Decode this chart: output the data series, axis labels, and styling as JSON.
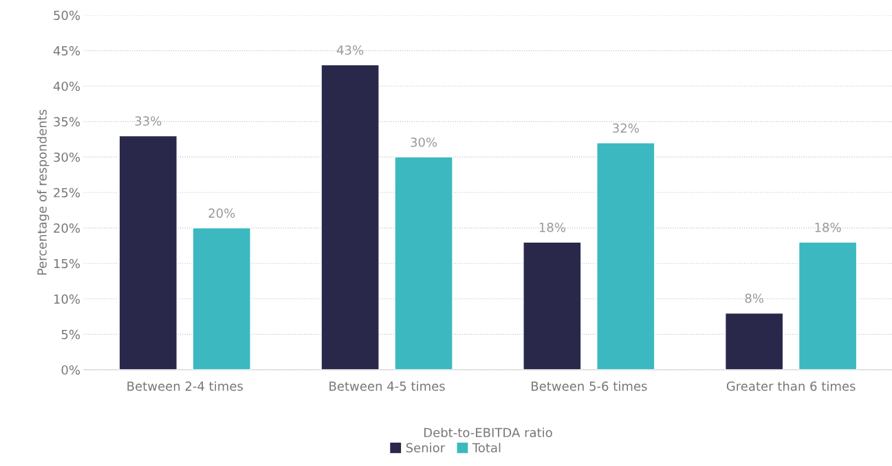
{
  "chart_data": {
    "type": "bar",
    "xlabel": "Debt-to-EBITDA ratio",
    "ylabel": "Percentage of respondents",
    "categories": [
      "Between 2-4 times",
      "Between 4-5 times",
      "Between 5-6 times",
      "Greater than 6 times"
    ],
    "series": [
      {
        "name": "Senior",
        "color": "#29284b",
        "values": [
          33,
          43,
          18,
          8
        ],
        "value_labels": [
          "33%",
          "43%",
          "18%",
          "8%"
        ]
      },
      {
        "name": "Total",
        "color": "#3cb8c0",
        "values": [
          20,
          30,
          32,
          18
        ],
        "value_labels": [
          "20%",
          "30%",
          "32%",
          "18%"
        ]
      }
    ],
    "ylim": [
      0,
      50
    ],
    "yticks": [
      {
        "value": 0,
        "label": "0%"
      },
      {
        "value": 5,
        "label": "5%"
      },
      {
        "value": 10,
        "label": "10%"
      },
      {
        "value": 15,
        "label": "15%"
      },
      {
        "value": 20,
        "label": "20%"
      },
      {
        "value": 25,
        "label": "25%"
      },
      {
        "value": 30,
        "label": "30%"
      },
      {
        "value": 35,
        "label": "35%"
      },
      {
        "value": 40,
        "label": "40%"
      },
      {
        "value": 45,
        "label": "45%"
      },
      {
        "value": 50,
        "label": "50%"
      }
    ],
    "grid": "y",
    "legend": "bottom"
  }
}
